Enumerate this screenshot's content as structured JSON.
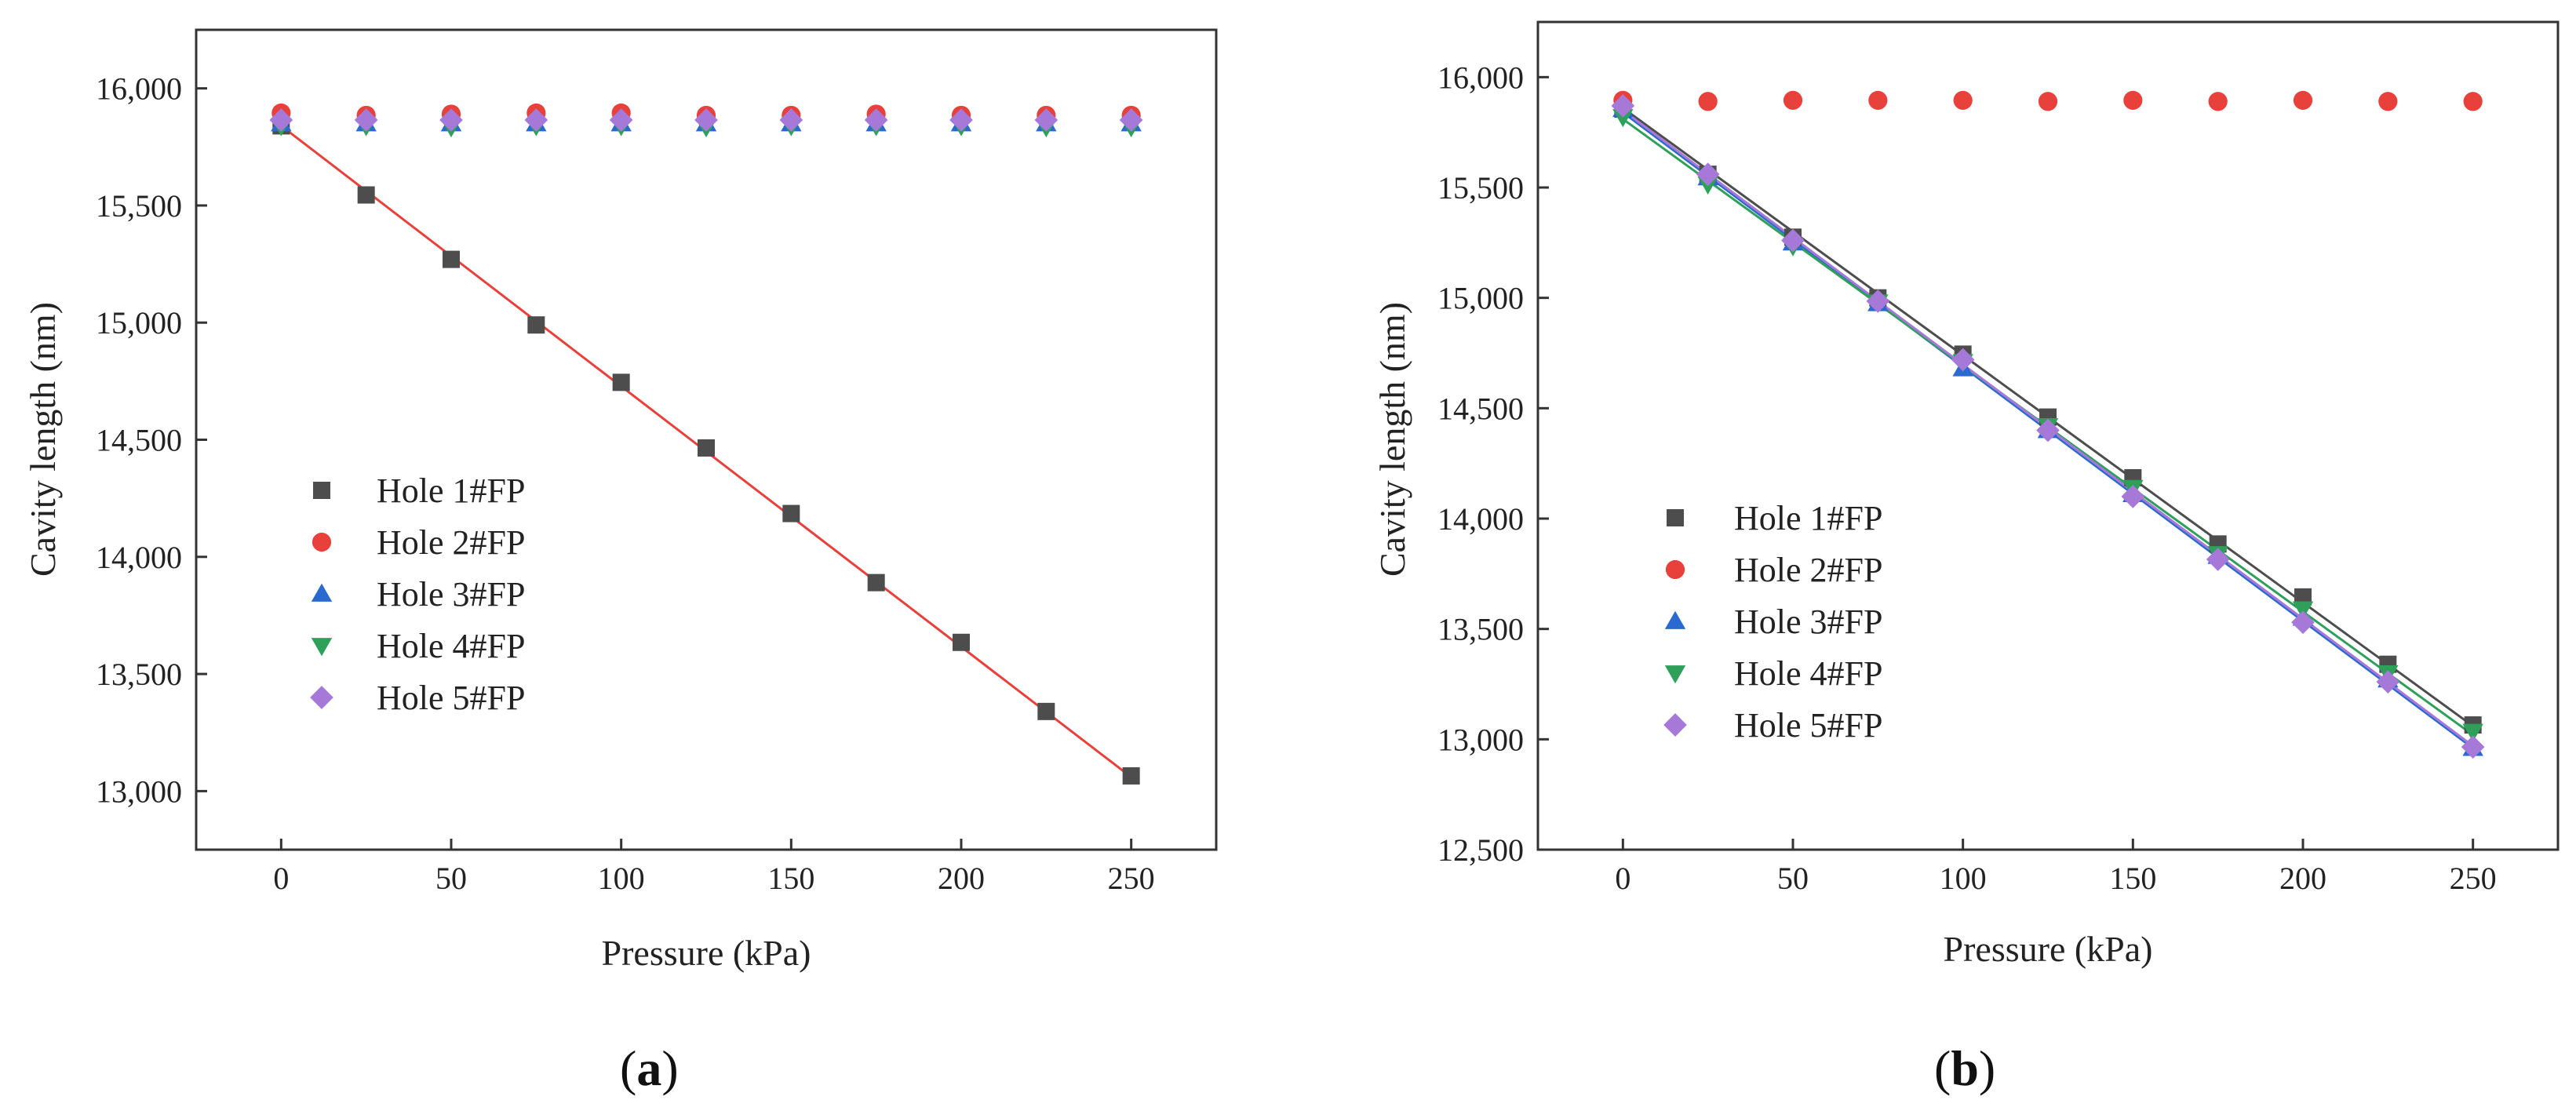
{
  "chart_data": [
    {
      "panel": "(a)",
      "type": "scatter",
      "xlabel": "Pressure (kPa)",
      "ylabel": "Cavity length (nm)",
      "xlim": [
        -25,
        275
      ],
      "ylim": [
        12750,
        16250
      ],
      "xticks": [
        0,
        50,
        100,
        150,
        200,
        250
      ],
      "xtick_labels": [
        "0",
        "50",
        "100",
        "150",
        "200",
        "250"
      ],
      "yticks": [
        13000,
        13500,
        14000,
        14500,
        15000,
        15500,
        16000
      ],
      "ytick_labels": [
        "13,000",
        "13,500",
        "14,000",
        "14,500",
        "15,000",
        "15,500",
        "16,000"
      ],
      "legend_position": "center-left",
      "x": [
        0,
        25,
        50,
        75,
        100,
        125,
        150,
        175,
        200,
        225,
        250
      ],
      "series": [
        {
          "name": "Hole 1#FP",
          "marker": "square",
          "color": "#4d4d4d",
          "values": [
            15840,
            15545,
            15270,
            14990,
            14745,
            14465,
            14185,
            13890,
            13635,
            13340,
            13065
          ]
        },
        {
          "name": "Hole 2#FP",
          "marker": "circle",
          "color": "#e8403a",
          "values": [
            15895,
            15885,
            15890,
            15895,
            15895,
            15885,
            15885,
            15890,
            15885,
            15885,
            15885
          ]
        },
        {
          "name": "Hole 3#FP",
          "marker": "triangle-up",
          "color": "#2a6ad0",
          "values": [
            15850,
            15850,
            15850,
            15850,
            15850,
            15850,
            15850,
            15850,
            15850,
            15850,
            15850
          ]
        },
        {
          "name": "Hole 4#FP",
          "marker": "triangle-down",
          "color": "#2ea05a",
          "values": [
            15840,
            15840,
            15835,
            15840,
            15840,
            15835,
            15840,
            15840,
            15840,
            15835,
            15835
          ]
        },
        {
          "name": "Hole 5#FP",
          "marker": "diamond",
          "color": "#a678d8",
          "values": [
            15865,
            15865,
            15865,
            15865,
            15865,
            15865,
            15865,
            15865,
            15865,
            15865,
            15865
          ]
        }
      ],
      "fits": [
        {
          "series": "Hole 1#FP",
          "color": "#e8403a",
          "x": [
            0,
            250
          ],
          "y": [
            15840,
            13060
          ]
        }
      ]
    },
    {
      "panel": "(b)",
      "type": "scatter",
      "xlabel": "Pressure (kPa)",
      "ylabel": "Cavity length (nm)",
      "xlim": [
        -25,
        275
      ],
      "ylim": [
        12500,
        16250
      ],
      "xticks": [
        0,
        50,
        100,
        150,
        200,
        250
      ],
      "xtick_labels": [
        "0",
        "50",
        "100",
        "150",
        "200",
        "250"
      ],
      "yticks": [
        12500,
        13000,
        13500,
        14000,
        14500,
        15000,
        15500,
        16000
      ],
      "ytick_labels": [
        "12,500",
        "13,000",
        "13,500",
        "14,000",
        "14,500",
        "15,000",
        "15,500",
        "16,000"
      ],
      "legend_position": "lower-left",
      "x": [
        0,
        25,
        50,
        75,
        100,
        125,
        150,
        175,
        200,
        225,
        250
      ],
      "series": [
        {
          "name": "Hole 1#FP",
          "marker": "square",
          "color": "#4d4d4d",
          "values": [
            15855,
            15560,
            15275,
            15000,
            14745,
            14460,
            14185,
            13885,
            13645,
            13340,
            13065
          ]
        },
        {
          "name": "Hole 2#FP",
          "marker": "circle",
          "color": "#e8403a",
          "values": [
            15895,
            15890,
            15895,
            15895,
            15895,
            15890,
            15895,
            15890,
            15895,
            15890,
            15890
          ]
        },
        {
          "name": "Hole 3#FP",
          "marker": "triangle-up",
          "color": "#2a6ad0",
          "values": [
            15855,
            15545,
            15250,
            14975,
            14680,
            14400,
            14110,
            13830,
            13550,
            13270,
            12960
          ]
        },
        {
          "name": "Hole 4#FP",
          "marker": "triangle-down",
          "color": "#2ea05a",
          "values": [
            15820,
            15515,
            15235,
            14980,
            14710,
            14420,
            14140,
            13840,
            13590,
            13300,
            13035
          ]
        },
        {
          "name": "Hole 5#FP",
          "marker": "diamond",
          "color": "#a678d8",
          "values": [
            15870,
            15560,
            15260,
            14985,
            14720,
            14400,
            14100,
            13815,
            13530,
            13260,
            12965
          ]
        }
      ],
      "fits": [
        {
          "series": "Hole 1#FP",
          "color": "#4d4d4d",
          "x": [
            0,
            250
          ],
          "y": [
            15860,
            13060
          ]
        },
        {
          "series": "Hole 3#FP",
          "color": "#2a6ad0",
          "x": [
            0,
            250
          ],
          "y": [
            15840,
            12960
          ]
        },
        {
          "series": "Hole 4#FP",
          "color": "#2ea05a",
          "x": [
            0,
            250
          ],
          "y": [
            15810,
            13020
          ]
        },
        {
          "series": "Hole 5#FP",
          "color": "#a678d8",
          "x": [
            0,
            250
          ],
          "y": [
            15850,
            12970
          ]
        }
      ]
    }
  ]
}
